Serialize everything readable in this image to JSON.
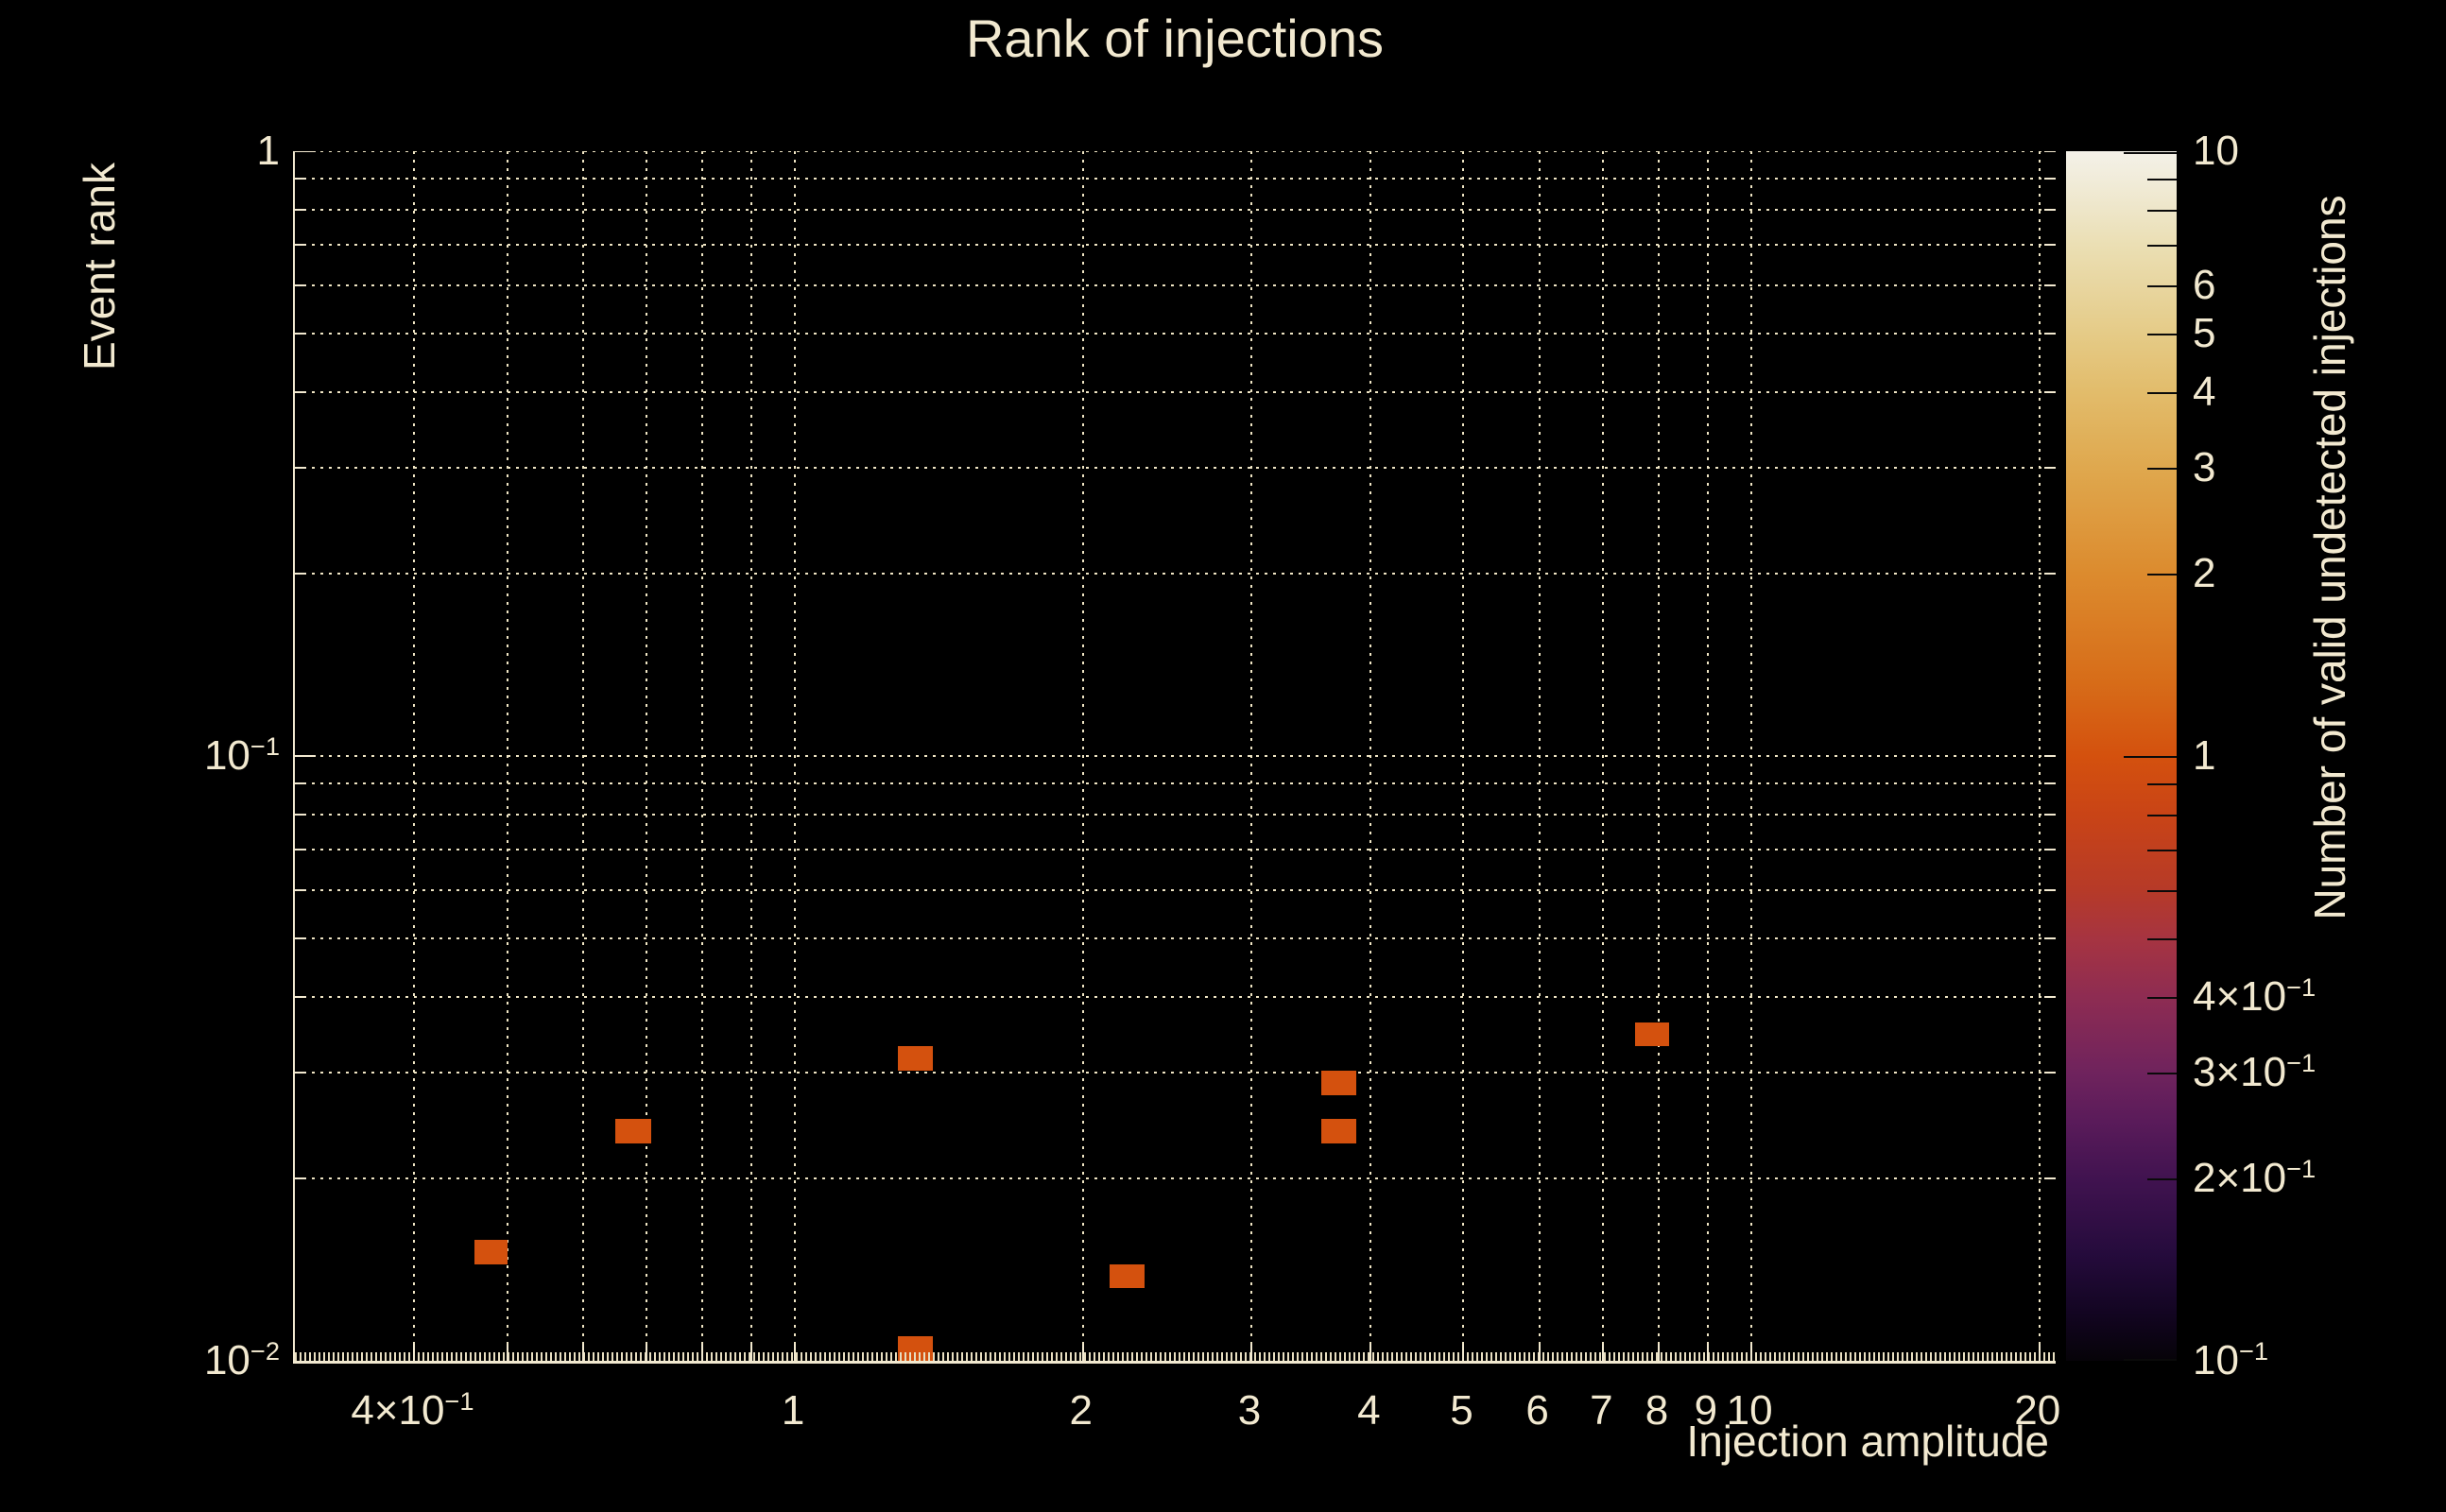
{
  "title": "Rank of injections",
  "colors": {
    "background": "#000000",
    "text_cream": "#f2e9d0",
    "gridline": "#efe5c4",
    "cell_value_1": "#d4510e",
    "colorbar_tick": "#0a0a0a"
  },
  "chart_data": {
    "type": "heatmap",
    "title": "Rank of injections",
    "xlabel": "Injection amplitude",
    "ylabel": "Event rank",
    "zlabel": "Number of valid undetected injections",
    "xscale": "log",
    "yscale": "log",
    "zscale": "log",
    "xlim": [
      0.3,
      20.8
    ],
    "ylim": [
      0.01,
      1.0
    ],
    "zlim": [
      0.1,
      10
    ],
    "grid": true,
    "x_grid": [
      0.4,
      0.5,
      0.6,
      0.7,
      0.8,
      0.9,
      1,
      2,
      3,
      4,
      5,
      6,
      7,
      8,
      9,
      10,
      20
    ],
    "y_grid": [
      1,
      0.9,
      0.8,
      0.7,
      0.6,
      0.5,
      0.4,
      0.3,
      0.2,
      0.1,
      0.09,
      0.08,
      0.07,
      0.06,
      0.05,
      0.04,
      0.03,
      0.02
    ],
    "x_ticks": [
      {
        "v": 0.4,
        "label": "4×10^−1"
      },
      {
        "v": 1,
        "label": "1"
      },
      {
        "v": 2,
        "label": "2"
      },
      {
        "v": 3,
        "label": "3"
      },
      {
        "v": 4,
        "label": "4"
      },
      {
        "v": 5,
        "label": "5"
      },
      {
        "v": 6,
        "label": "6"
      },
      {
        "v": 7,
        "label": "7"
      },
      {
        "v": 8,
        "label": "8"
      },
      {
        "v": 9,
        "label": "9"
      },
      {
        "v": 10,
        "label": "10"
      },
      {
        "v": 20,
        "label": "20"
      }
    ],
    "y_ticks": [
      {
        "v": 1,
        "label": "1"
      },
      {
        "v": 0.1,
        "label": "10^−1"
      },
      {
        "v": 0.01,
        "label": "10^−2"
      }
    ],
    "points": [
      {
        "x": [
          0.462,
          0.501
        ],
        "y": [
          0.01445,
          0.01585
        ],
        "value": 1
      },
      {
        "x": [
          0.649,
          0.707
        ],
        "y": [
          0.0229,
          0.0251
        ],
        "value": 1
      },
      {
        "x": [
          1.282,
          1.395
        ],
        "y": [
          0.0302,
          0.0331
        ],
        "value": 1
      },
      {
        "x": [
          1.282,
          1.395
        ],
        "y": [
          0.01,
          0.011
        ],
        "value": 1
      },
      {
        "x": [
          2.132,
          2.32
        ],
        "y": [
          0.01318,
          0.01445
        ],
        "value": 1
      },
      {
        "x": [
          3.553,
          3.864
        ],
        "y": [
          0.0275,
          0.0302
        ],
        "value": 1
      },
      {
        "x": [
          3.553,
          3.864
        ],
        "y": [
          0.0229,
          0.0251
        ],
        "value": 1
      },
      {
        "x": [
          7.55,
          8.21
        ],
        "y": [
          0.0331,
          0.0363
        ],
        "value": 1
      }
    ],
    "colorbar_ticks": [
      {
        "v": 10,
        "label": "10",
        "major": true
      },
      {
        "v": 9,
        "label": null,
        "major": false
      },
      {
        "v": 8,
        "label": null,
        "major": false
      },
      {
        "v": 7,
        "label": null,
        "major": false
      },
      {
        "v": 6,
        "label": "6",
        "major": false
      },
      {
        "v": 5,
        "label": "5",
        "major": false
      },
      {
        "v": 4,
        "label": "4",
        "major": false
      },
      {
        "v": 3,
        "label": "3",
        "major": false
      },
      {
        "v": 2,
        "label": "2",
        "major": false
      },
      {
        "v": 1,
        "label": "1",
        "major": true
      },
      {
        "v": 0.9,
        "label": null,
        "major": false
      },
      {
        "v": 0.8,
        "label": null,
        "major": false
      },
      {
        "v": 0.7,
        "label": null,
        "major": false
      },
      {
        "v": 0.6,
        "label": null,
        "major": false
      },
      {
        "v": 0.5,
        "label": null,
        "major": false
      },
      {
        "v": 0.4,
        "label": "4×10^−1",
        "major": false
      },
      {
        "v": 0.3,
        "label": "3×10^−1",
        "major": false
      },
      {
        "v": 0.2,
        "label": "2×10^−1",
        "major": false
      },
      {
        "v": 0.1,
        "label": "10^−1",
        "major": true
      }
    ],
    "colormap_stops": [
      {
        "pos": 0.0,
        "color": "#f4f1e8"
      },
      {
        "pos": 0.023,
        "color": "#f1ecda"
      },
      {
        "pos": 0.048,
        "color": "#eee6c9"
      },
      {
        "pos": 0.077,
        "color": "#ebdfb4"
      },
      {
        "pos": 0.111,
        "color": "#e8d6a0"
      },
      {
        "pos": 0.151,
        "color": "#e5cb87"
      },
      {
        "pos": 0.199,
        "color": "#e2bc6b"
      },
      {
        "pos": 0.262,
        "color": "#dfa84e"
      },
      {
        "pos": 0.349,
        "color": "#dc8b2e"
      },
      {
        "pos": 0.437,
        "color": "#d76d19"
      },
      {
        "pos": 0.5,
        "color": "#d4510e"
      },
      {
        "pos": 0.548,
        "color": "#c94416"
      },
      {
        "pos": 0.611,
        "color": "#b63a28"
      },
      {
        "pos": 0.651,
        "color": "#a63441"
      },
      {
        "pos": 0.699,
        "color": "#8e2c52"
      },
      {
        "pos": 0.762,
        "color": "#6f235d"
      },
      {
        "pos": 0.802,
        "color": "#5a1b5a"
      },
      {
        "pos": 0.849,
        "color": "#411350"
      },
      {
        "pos": 0.912,
        "color": "#250b3c"
      },
      {
        "pos": 0.96,
        "color": "#130522"
      },
      {
        "pos": 1.0,
        "color": "#060308"
      }
    ]
  }
}
